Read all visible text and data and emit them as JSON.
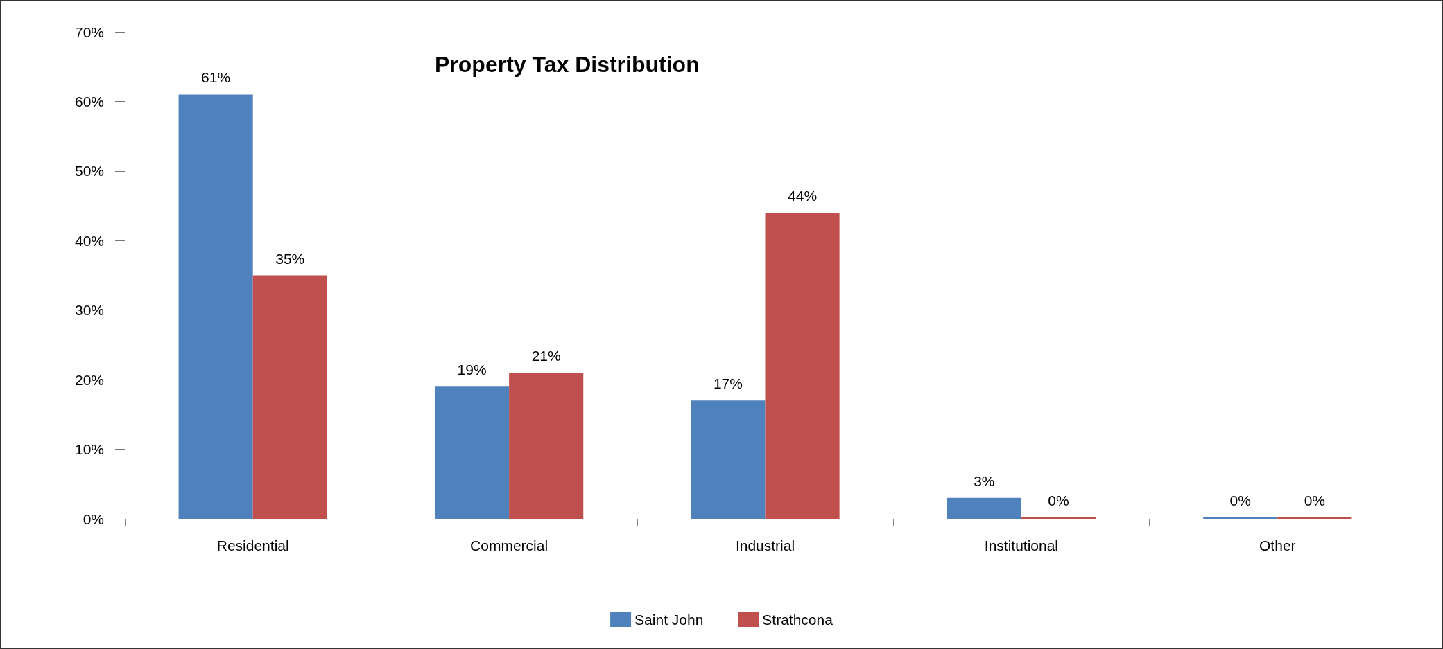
{
  "chart_data": {
    "type": "bar",
    "title": "Property Tax Distribution",
    "categories": [
      "Residential",
      "Commercial",
      "Industrial",
      "Institutional",
      "Other"
    ],
    "series": [
      {
        "name": "Saint John",
        "color": "#4f81bd",
        "values": [
          61,
          19,
          17,
          3,
          0
        ],
        "value_labels": [
          "61%",
          "19%",
          "17%",
          "3%",
          "0%"
        ]
      },
      {
        "name": "Strathcona",
        "color": "#c0504d",
        "values": [
          35,
          21,
          44,
          0,
          0
        ],
        "value_labels": [
          "35%",
          "21%",
          "44%",
          "0%",
          "0%"
        ]
      }
    ],
    "ylim": [
      0,
      70
    ],
    "yticks": [
      {
        "value": 0,
        "label": "0%"
      },
      {
        "value": 10,
        "label": "10%"
      },
      {
        "value": 20,
        "label": "20%"
      },
      {
        "value": 30,
        "label": "30%"
      },
      {
        "value": 40,
        "label": "40%"
      },
      {
        "value": 50,
        "label": "50%"
      },
      {
        "value": 60,
        "label": "60%"
      },
      {
        "value": 70,
        "label": "70%"
      }
    ],
    "grid": false,
    "legend": "bottom"
  }
}
